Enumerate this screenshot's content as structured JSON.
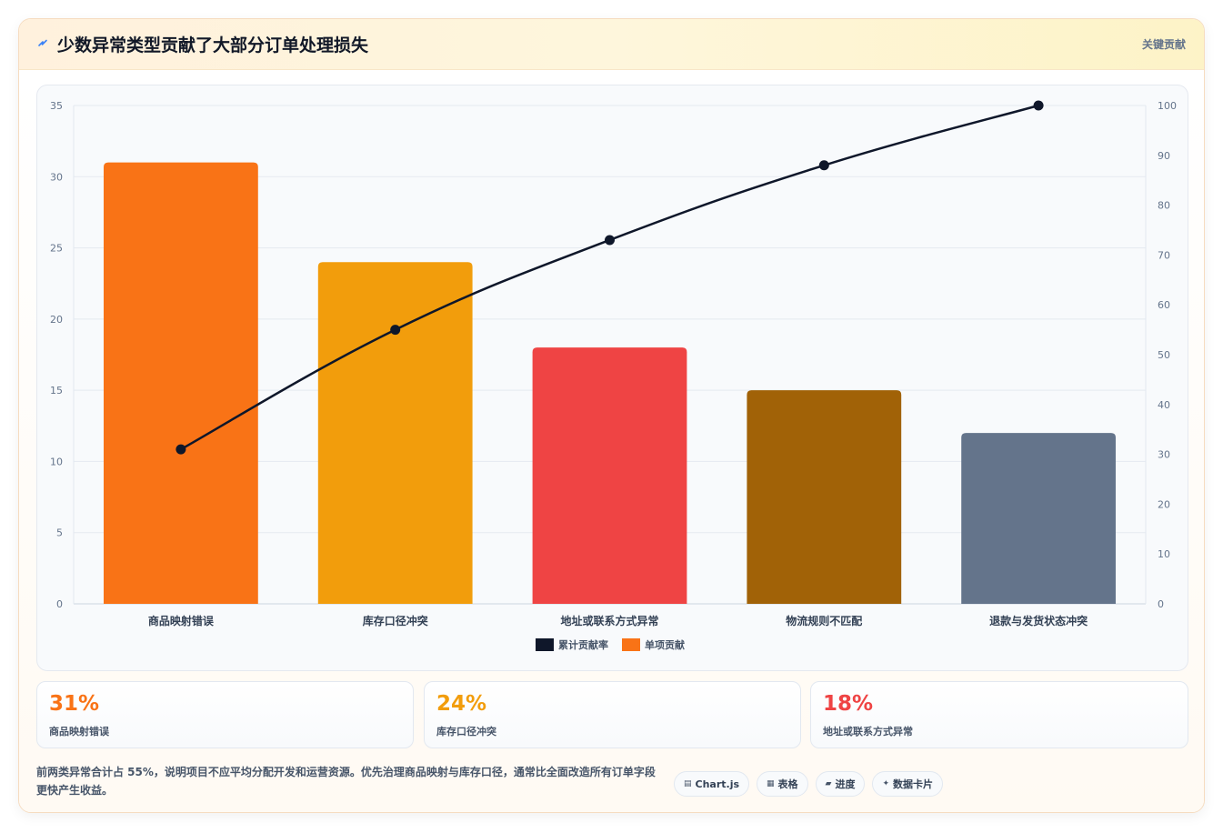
{
  "header": {
    "title": "少数异常类型贡献了大部分订单处理损失",
    "tag": "关键贡献",
    "icon": "lightning-icon"
  },
  "chart_data": {
    "type": "bar",
    "categories": [
      "商品映射错误",
      "库存口径冲突",
      "地址或联系方式异常",
      "物流规则不匹配",
      "退款与发货状态冲突"
    ],
    "series": [
      {
        "name": "单项贡献",
        "type": "bar",
        "axis": "left",
        "values": [
          31,
          24,
          18,
          15,
          12
        ],
        "colors": [
          "#f97316",
          "#f29d0c",
          "#ef4444",
          "#a16207",
          "#64748b"
        ]
      },
      {
        "name": "累计贡献率",
        "type": "line",
        "axis": "right",
        "values": [
          31,
          55,
          73,
          88,
          100
        ],
        "color": "#0f172a"
      }
    ],
    "left_axis": {
      "min": 0,
      "max": 35,
      "step": 5
    },
    "right_axis": {
      "min": 0,
      "max": 100,
      "step": 10
    },
    "legend": [
      {
        "label": "累计贡献率",
        "color": "#0f172a"
      },
      {
        "label": "单项贡献",
        "color": "#f97316"
      }
    ],
    "legend_position": "bottom",
    "grid": true
  },
  "stats": [
    {
      "value": "31%",
      "label": "商品映射错误",
      "color": "#f97316"
    },
    {
      "value": "24%",
      "label": "库存口径冲突",
      "color": "#f29d0c"
    },
    {
      "value": "18%",
      "label": "地址或联系方式异常",
      "color": "#ef4444"
    }
  ],
  "note": "前两类异常合计占 55%，说明项目不应平均分配开发和运营资源。优先治理商品映射与库存口径，通常比全面改造所有订单字段更快产生收益。",
  "pills": [
    {
      "icon": "▤",
      "label": "Chart.js",
      "name": "chartjs-pill"
    },
    {
      "icon": "▦",
      "label": "表格",
      "name": "table-pill"
    },
    {
      "icon": "▰",
      "label": "进度",
      "name": "progress-pill"
    },
    {
      "icon": "✦",
      "label": "数据卡片",
      "name": "data-card-pill"
    }
  ]
}
